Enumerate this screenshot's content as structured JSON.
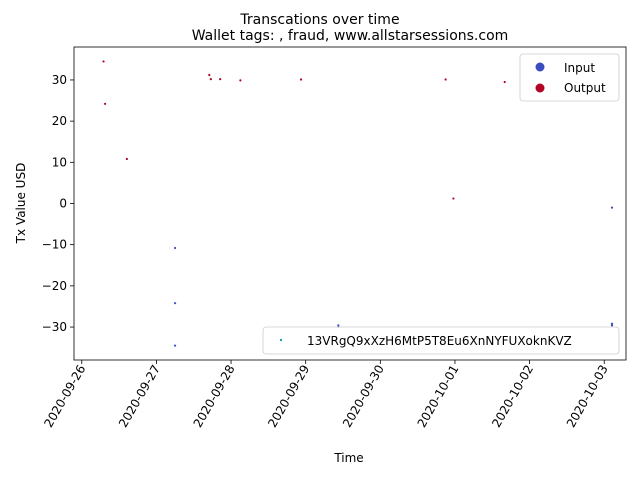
{
  "chart_data": {
    "type": "scatter",
    "title": "Transcations over time",
    "subtitle": "Wallet tags: , fraud, www.allstarsessions.com",
    "xlabel": "Time",
    "ylabel": "Tx Value USD",
    "x_tick_labels": [
      "2020-09-26",
      "2020-09-27",
      "2020-09-28",
      "2020-09-29",
      "2020-09-30",
      "2020-10-01",
      "2020-10-02",
      "2020-10-03"
    ],
    "y_tick_labels": [
      "−30",
      "−20",
      "−10",
      "0",
      "10",
      "20",
      "30"
    ],
    "y_ticks": [
      -30,
      -20,
      -10,
      0,
      10,
      20,
      30
    ],
    "xlim": [
      "2020-09-25T21:30",
      "2020-10-03T07:00"
    ],
    "ylim": [
      -38,
      38
    ],
    "grid": false,
    "legend": {
      "upper": {
        "placement": "top-right",
        "entries": [
          {
            "label": "Input",
            "color": "#3b4cc0"
          },
          {
            "label": "Output",
            "color": "#b40426"
          }
        ]
      },
      "lower": {
        "placement": "bottom-right",
        "entries": [
          {
            "label": "13VRgQ9xXzH6MtP5T8Eu6XnNYFUXoknKVZ",
            "color": "#1f9fa8"
          }
        ]
      }
    },
    "series": [
      {
        "name": "Input",
        "color": "#3b4cc0",
        "points": [
          {
            "x": "2020-09-27T06:00",
            "y": -10.8
          },
          {
            "x": "2020-09-27T06:00",
            "y": -24.2
          },
          {
            "x": "2020-09-27T06:00",
            "y": -34.5
          },
          {
            "x": "2020-09-29T10:30",
            "y": -29.6
          },
          {
            "x": "2020-09-29T10:30",
            "y": -30.0
          },
          {
            "x": "2020-10-03T02:30",
            "y": -1.0
          },
          {
            "x": "2020-10-03T02:30",
            "y": -29.2
          },
          {
            "x": "2020-10-03T02:30",
            "y": -29.6
          }
        ]
      },
      {
        "name": "Output",
        "color": "#b40426",
        "points": [
          {
            "x": "2020-09-26T07:00",
            "y": 34.5
          },
          {
            "x": "2020-09-26T07:30",
            "y": 24.2
          },
          {
            "x": "2020-09-26T14:30",
            "y": 10.8
          },
          {
            "x": "2020-09-27T17:00",
            "y": 31.2
          },
          {
            "x": "2020-09-27T17:30",
            "y": 30.2
          },
          {
            "x": "2020-09-27T20:30",
            "y": 30.2
          },
          {
            "x": "2020-09-28T03:00",
            "y": 29.9
          },
          {
            "x": "2020-09-28T22:30",
            "y": 30.1
          },
          {
            "x": "2020-09-30T21:00",
            "y": 30.1
          },
          {
            "x": "2020-09-30T23:30",
            "y": 1.2
          },
          {
            "x": "2020-10-01T16:00",
            "y": 29.5
          }
        ]
      }
    ]
  }
}
